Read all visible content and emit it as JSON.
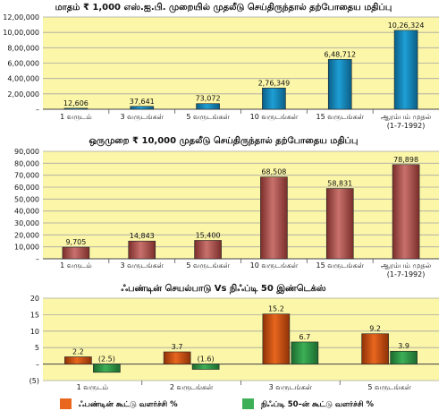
{
  "colors": {
    "plot_bg": "#FBF6A8",
    "grid": "#A9A7A2",
    "blue": "#1E9FD6",
    "blue_dark": "#0B5E86",
    "rose": "#C9716C",
    "rose_dark": "#7A2E2B",
    "orange": "#E8661E",
    "orange_dark": "#8E3208",
    "green": "#3DAF57",
    "green_dark": "#1B6A2E"
  },
  "chart_data": [
    {
      "type": "bar",
      "title": "மாதம் ₹ 1,000 எஸ்.ஐ.பி. முறையில் முதலீடு செய்திருந்தால் தற்போதைய மதிப்பு",
      "categories": [
        "1 வருடம்",
        "3 வருடங்கள்",
        "5 வருடங்கள்",
        "10 வருடங்கள்",
        "15 வருடங்கள்",
        "ஆரம்பம் முதல்|(1-7-1992)"
      ],
      "values": [
        12606,
        37641,
        73072,
        276349,
        648712,
        1026324
      ],
      "data_labels": [
        "12,606",
        "37,641",
        "73,072",
        "2,76,349",
        "6,48,712",
        "10,26,324"
      ],
      "ylim": [
        0,
        1200000
      ],
      "yticks": [
        0,
        200000,
        400000,
        600000,
        800000,
        1000000,
        1200000
      ],
      "ytick_labels": [
        "–",
        "2,00,000",
        "4,00,000",
        "6,00,000",
        "8,00,000",
        "10,00,000",
        "12,00,000"
      ],
      "grid": true,
      "bar_color": "blue"
    },
    {
      "type": "bar",
      "title": "ஒருமுறை ₹ 10,000 முதலீடு செய்திருந்தால் தற்போதைய மதிப்பு",
      "categories": [
        "1 வருடம்",
        "3 வருடங்கள்",
        "5 வருடங்கள்",
        "10 வருடங்கள்",
        "15 வருடங்கள்",
        "ஆரம்பம் முதல்|(1-7-1992)"
      ],
      "values": [
        9705,
        14843,
        15400,
        68508,
        58831,
        78898
      ],
      "data_labels": [
        "9,705",
        "14,843",
        "15,400",
        "68,508",
        "58,831",
        "78,898"
      ],
      "ylim": [
        0,
        90000
      ],
      "yticks": [
        0,
        10000,
        20000,
        30000,
        40000,
        50000,
        60000,
        70000,
        80000,
        90000
      ],
      "ytick_labels": [
        "–",
        "10,000",
        "20,000",
        "30,000",
        "40,000",
        "50,000",
        "60,000",
        "70,000",
        "80,000",
        "90,000"
      ],
      "grid": true,
      "bar_color": "rose"
    },
    {
      "type": "bar",
      "title": "ஃபண்டின் செயல்பாடு Vs நிஃப்டி 50 இண்டெக்ஸ்",
      "categories": [
        "1 வருடம்",
        "2 வருடங்கள்",
        "3 வருடங்கள்",
        "5 வருடங்கள்"
      ],
      "series": [
        {
          "name": "ஃபண்டின் கூட்டு வளர்ச்சி %",
          "values": [
            2.2,
            3.7,
            15.2,
            9.2
          ],
          "data_labels": [
            "2.2",
            "3.7",
            "15.2",
            "9.2"
          ],
          "color": "orange"
        },
        {
          "name": "நிஃப்டி 50–ன் கூட்டு வளர்ச்சி %",
          "values": [
            -2.5,
            -1.6,
            6.7,
            3.9
          ],
          "data_labels": [
            "(2.5)",
            "(1.6)",
            "6.7",
            "3.9"
          ],
          "color": "green"
        }
      ],
      "ylim": [
        -5,
        20
      ],
      "yticks": [
        -5,
        0,
        5,
        10,
        15,
        20
      ],
      "ytick_labels": [
        "(5)",
        "–",
        "5",
        "10",
        "15",
        "20"
      ],
      "grid": true,
      "legend": "bottom"
    }
  ]
}
